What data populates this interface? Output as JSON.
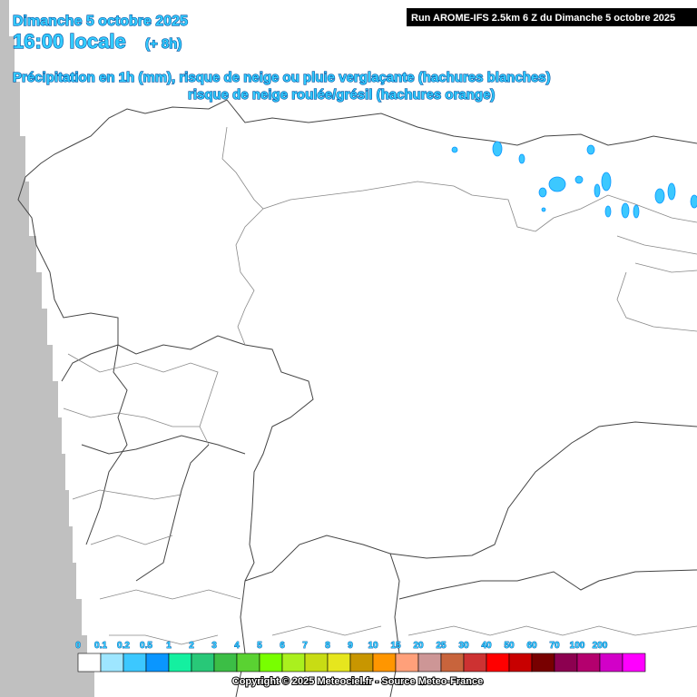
{
  "header": {
    "date": "Dimanche 5 octobre 2025",
    "time": "16:00 locale",
    "lead": "(+ 8h)",
    "run": "Run AROME-IFS 2.5km 6 Z du Dimanche 5 octobre 2025",
    "line1": "Précipitation en 1h (mm), risque de neige ou pluie verglaçante (hachures blanches)",
    "line2": "risque de neige roulée/grésil (hachures orange)"
  },
  "legend": {
    "items": [
      {
        "label": "0",
        "color": "#ffffff"
      },
      {
        "label": "0.1",
        "color": "#9ee6ff"
      },
      {
        "label": "0.2",
        "color": "#3cc8ff"
      },
      {
        "label": "0.5",
        "color": "#0a96ff"
      },
      {
        "label": "1",
        "color": "#14f0a0"
      },
      {
        "label": "2",
        "color": "#28c878"
      },
      {
        "label": "3",
        "color": "#3cbe46"
      },
      {
        "label": "4",
        "color": "#5ad232"
      },
      {
        "label": "5",
        "color": "#78ff00"
      },
      {
        "label": "6",
        "color": "#aaf01e"
      },
      {
        "label": "7",
        "color": "#c8dc14"
      },
      {
        "label": "8",
        "color": "#e6e61e"
      },
      {
        "label": "9",
        "color": "#c89600"
      },
      {
        "label": "10",
        "color": "#ff9600"
      },
      {
        "label": "15",
        "color": "#ffa07a"
      },
      {
        "label": "20",
        "color": "#cd9696"
      },
      {
        "label": "25",
        "color": "#c8643c"
      },
      {
        "label": "30",
        "color": "#cd3232"
      },
      {
        "label": "40",
        "color": "#ff0000"
      },
      {
        "label": "50",
        "color": "#c80000"
      },
      {
        "label": "60",
        "color": "#780000"
      },
      {
        "label": "70",
        "color": "#8c0050"
      },
      {
        "label": "100",
        "color": "#b4006e"
      },
      {
        "label": "200",
        "color": "#d200c8"
      }
    ],
    "extra_color": "#ff00ff"
  },
  "footer": {
    "copyright": "Copyright © 2025 Meteociel.fr - Source Meteo-France"
  }
}
